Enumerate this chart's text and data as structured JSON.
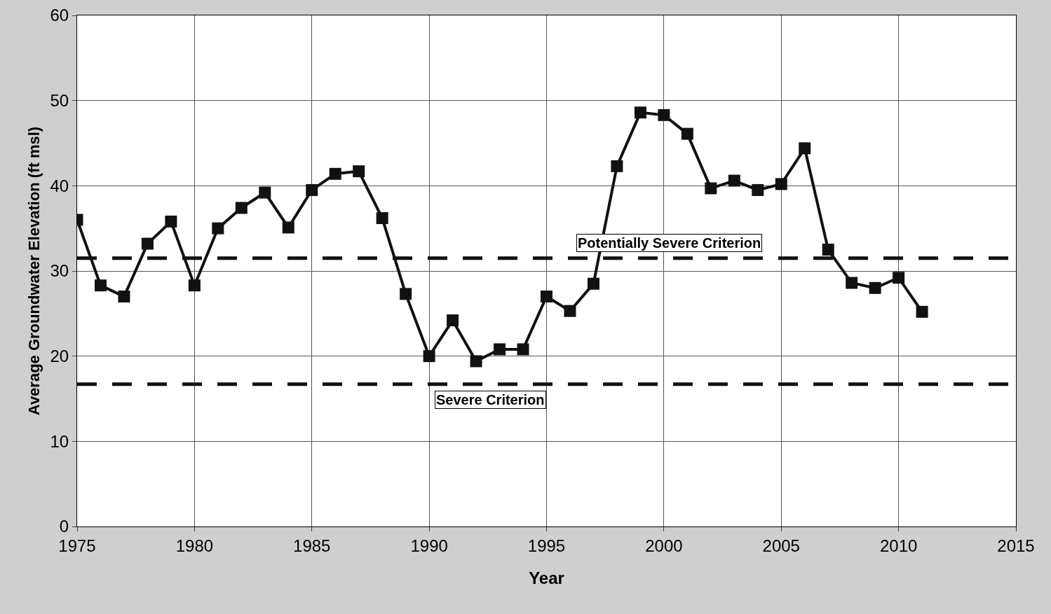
{
  "chart_data": {
    "type": "line",
    "xlabel": "Year",
    "ylabel": "Average Groundwater Elevation (ft msl)",
    "x": [
      1975,
      1976,
      1977,
      1978,
      1979,
      1980,
      1981,
      1982,
      1983,
      1984,
      1985,
      1986,
      1987,
      1988,
      1989,
      1990,
      1991,
      1992,
      1993,
      1994,
      1995,
      1996,
      1997,
      1998,
      1999,
      2000,
      2001,
      2002,
      2003,
      2004,
      2005,
      2006,
      2007,
      2008,
      2009,
      2010,
      2011
    ],
    "series": [
      {
        "color": "#111111",
        "values": [
          36.0,
          28.3,
          27.0,
          33.2,
          35.8,
          28.3,
          35.0,
          37.4,
          39.2,
          35.1,
          39.5,
          41.4,
          41.7,
          36.2,
          27.3,
          20.0,
          24.2,
          19.4,
          20.8,
          20.8,
          27.0,
          25.3,
          28.5,
          42.3,
          48.6,
          48.3,
          46.1,
          39.7,
          40.6,
          39.5,
          40.2,
          44.4,
          32.5,
          28.6,
          28.0,
          29.2,
          25.2
        ]
      }
    ],
    "marker": "square",
    "line_style": "solid",
    "xlim": [
      1975,
      2015
    ],
    "xticks": [
      1975,
      1980,
      1985,
      1990,
      1995,
      2000,
      2005,
      2010,
      2015
    ],
    "ylim": [
      0,
      60
    ],
    "yticks": [
      0,
      10,
      20,
      30,
      40,
      50,
      60
    ],
    "grid": true,
    "ref_lines": [
      {
        "axis": "y",
        "value": 31.5,
        "label": "Potentially Severe Criterion",
        "color": "#111111",
        "line_style": "dashed"
      },
      {
        "axis": "y",
        "value": 16.7,
        "label": "Severe Criterion",
        "color": "#111111",
        "line_style": "dashed"
      }
    ]
  }
}
